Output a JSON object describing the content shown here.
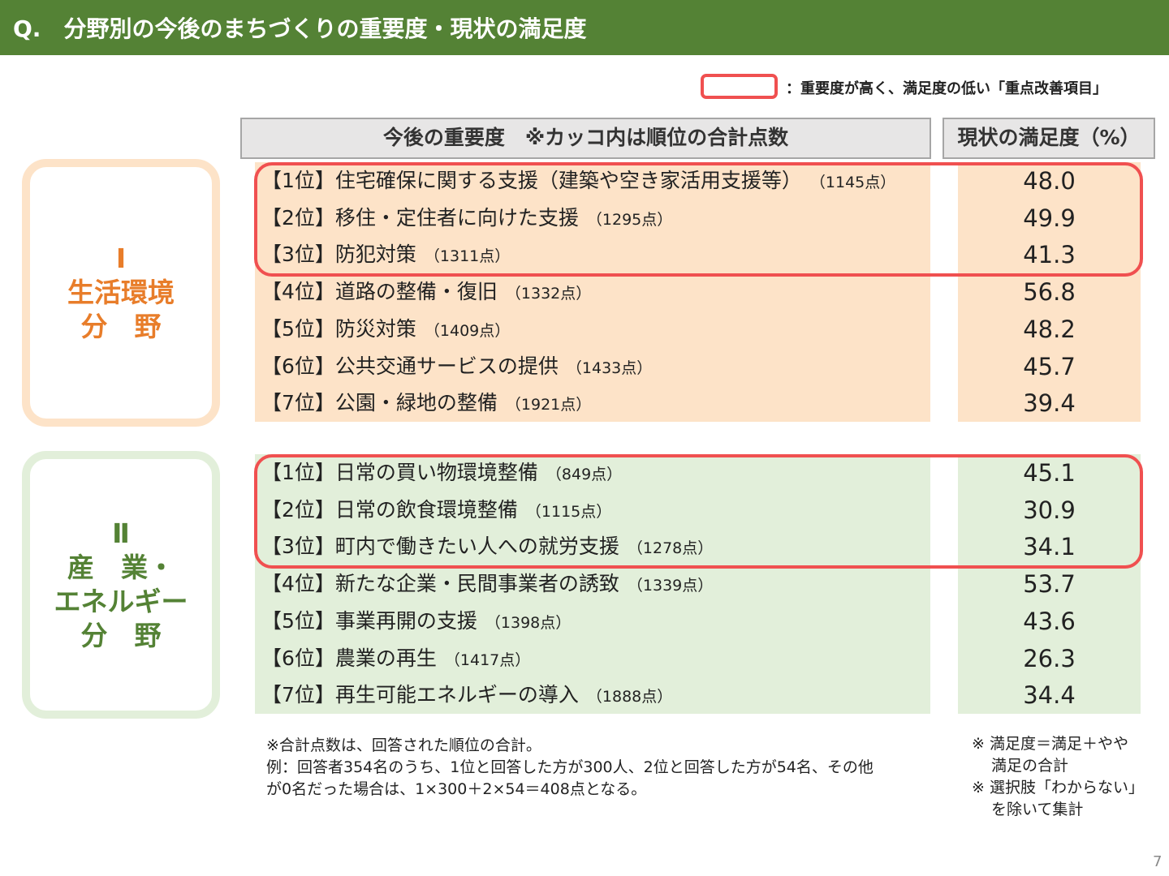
{
  "header": {
    "title": "Q.　分野別の今後のまちづくりの重要度・現状の満足度"
  },
  "legend": {
    "label": "：重要度が高く、満足度の低い「重点改善項目」"
  },
  "table": {
    "headers": [
      "今後の重要度　※カッコ内は順位の合計点数",
      "現状の満足度（%）"
    ],
    "sections": [
      {
        "label": [
          "Ⅰ",
          "生活環境",
          "分　野"
        ],
        "rows": [
          {
            "rank": "【1位】",
            "item": "住宅確保に関する支援（建築や空き家活用支援等）",
            "points": "（1145点）",
            "satisfaction": "48.0"
          },
          {
            "rank": "【2位】",
            "item": "移住・定住者に向けた支援",
            "points": "（1295点）",
            "satisfaction": "49.9"
          },
          {
            "rank": "【3位】",
            "item": "防犯対策",
            "points": "（1311点）",
            "satisfaction": "41.3"
          },
          {
            "rank": "【4位】",
            "item": "道路の整備・復旧",
            "points": "（1332点）",
            "satisfaction": "56.8"
          },
          {
            "rank": "【5位】",
            "item": "防災対策",
            "points": "（1409点）",
            "satisfaction": "48.2"
          },
          {
            "rank": "【6位】",
            "item": "公共交通サービスの提供",
            "points": "（1433点）",
            "satisfaction": "45.7"
          },
          {
            "rank": "【7位】",
            "item": "公園・緑地の整備",
            "points": "（1921点）",
            "satisfaction": "39.4"
          }
        ]
      },
      {
        "label": [
          "Ⅱ",
          "産　業・",
          "エネルギー",
          "分　野"
        ],
        "rows": [
          {
            "rank": "【1位】",
            "item": "日常の買い物環境整備",
            "points": "（849点）",
            "satisfaction": "45.1"
          },
          {
            "rank": "【2位】",
            "item": "日常の飲食環境整備",
            "points": "（1115点）",
            "satisfaction": "30.9"
          },
          {
            "rank": "【3位】",
            "item": "町内で働きたい人への就労支援",
            "points": "（1278点）",
            "satisfaction": "34.1"
          },
          {
            "rank": "【4位】",
            "item": "新たな企業・民間事業者の誘致",
            "points": "（1339点）",
            "satisfaction": "53.7"
          },
          {
            "rank": "【5位】",
            "item": "事業再開の支援",
            "points": "（1398点）",
            "satisfaction": "43.6"
          },
          {
            "rank": "【6位】",
            "item": "農業の再生",
            "points": "（1417点）",
            "satisfaction": "26.3"
          },
          {
            "rank": "【7位】",
            "item": "再生可能エネルギーの導入",
            "points": "（1888点）",
            "satisfaction": "34.4"
          }
        ]
      }
    ]
  },
  "footnotes": [
    "※合計点数は、回答された順位の合計。",
    "例：回答者354名のうち、1位と回答した方が300人、2位と回答した方が54名、その他",
    "が0名だった場合は、1×300＋2×54＝408点となる。"
  ],
  "side_notes": [
    "※ 満足度＝満足＋やや",
    "満足の合計",
    "※ 選択肢「わからない」",
    "を除いて集計"
  ],
  "page_number": "7"
}
